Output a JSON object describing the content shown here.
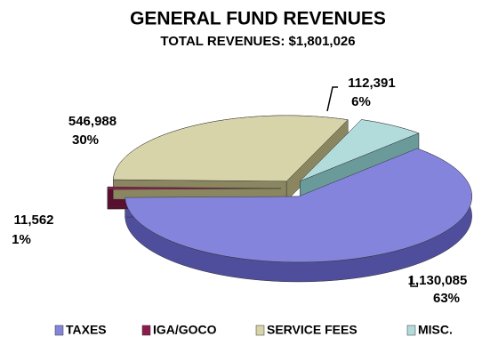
{
  "chart_data": {
    "type": "pie",
    "title": "GENERAL FUND REVENUES",
    "subtitle": "TOTAL REVENUES: $1,801,026",
    "categories": [
      "TAXES",
      "IGA/GOCO",
      "SERVICE FEES",
      "MISC."
    ],
    "values": [
      1130085,
      11562,
      546988,
      112391
    ],
    "value_labels": [
      "1,130,085",
      "11,562",
      "546,988",
      "112,391"
    ],
    "percents": [
      63,
      1,
      30,
      6
    ],
    "percent_labels": [
      "63%",
      "1%",
      "30%",
      "6%"
    ],
    "colors": [
      "#8484dc",
      "#8c1c4c",
      "#d8d4aa",
      "#b2dcdc"
    ],
    "side_colors": [
      "#4e4e9c",
      "#5a0e30",
      "#8a8660",
      "#6a9a9a"
    ],
    "legend": "bottom"
  }
}
